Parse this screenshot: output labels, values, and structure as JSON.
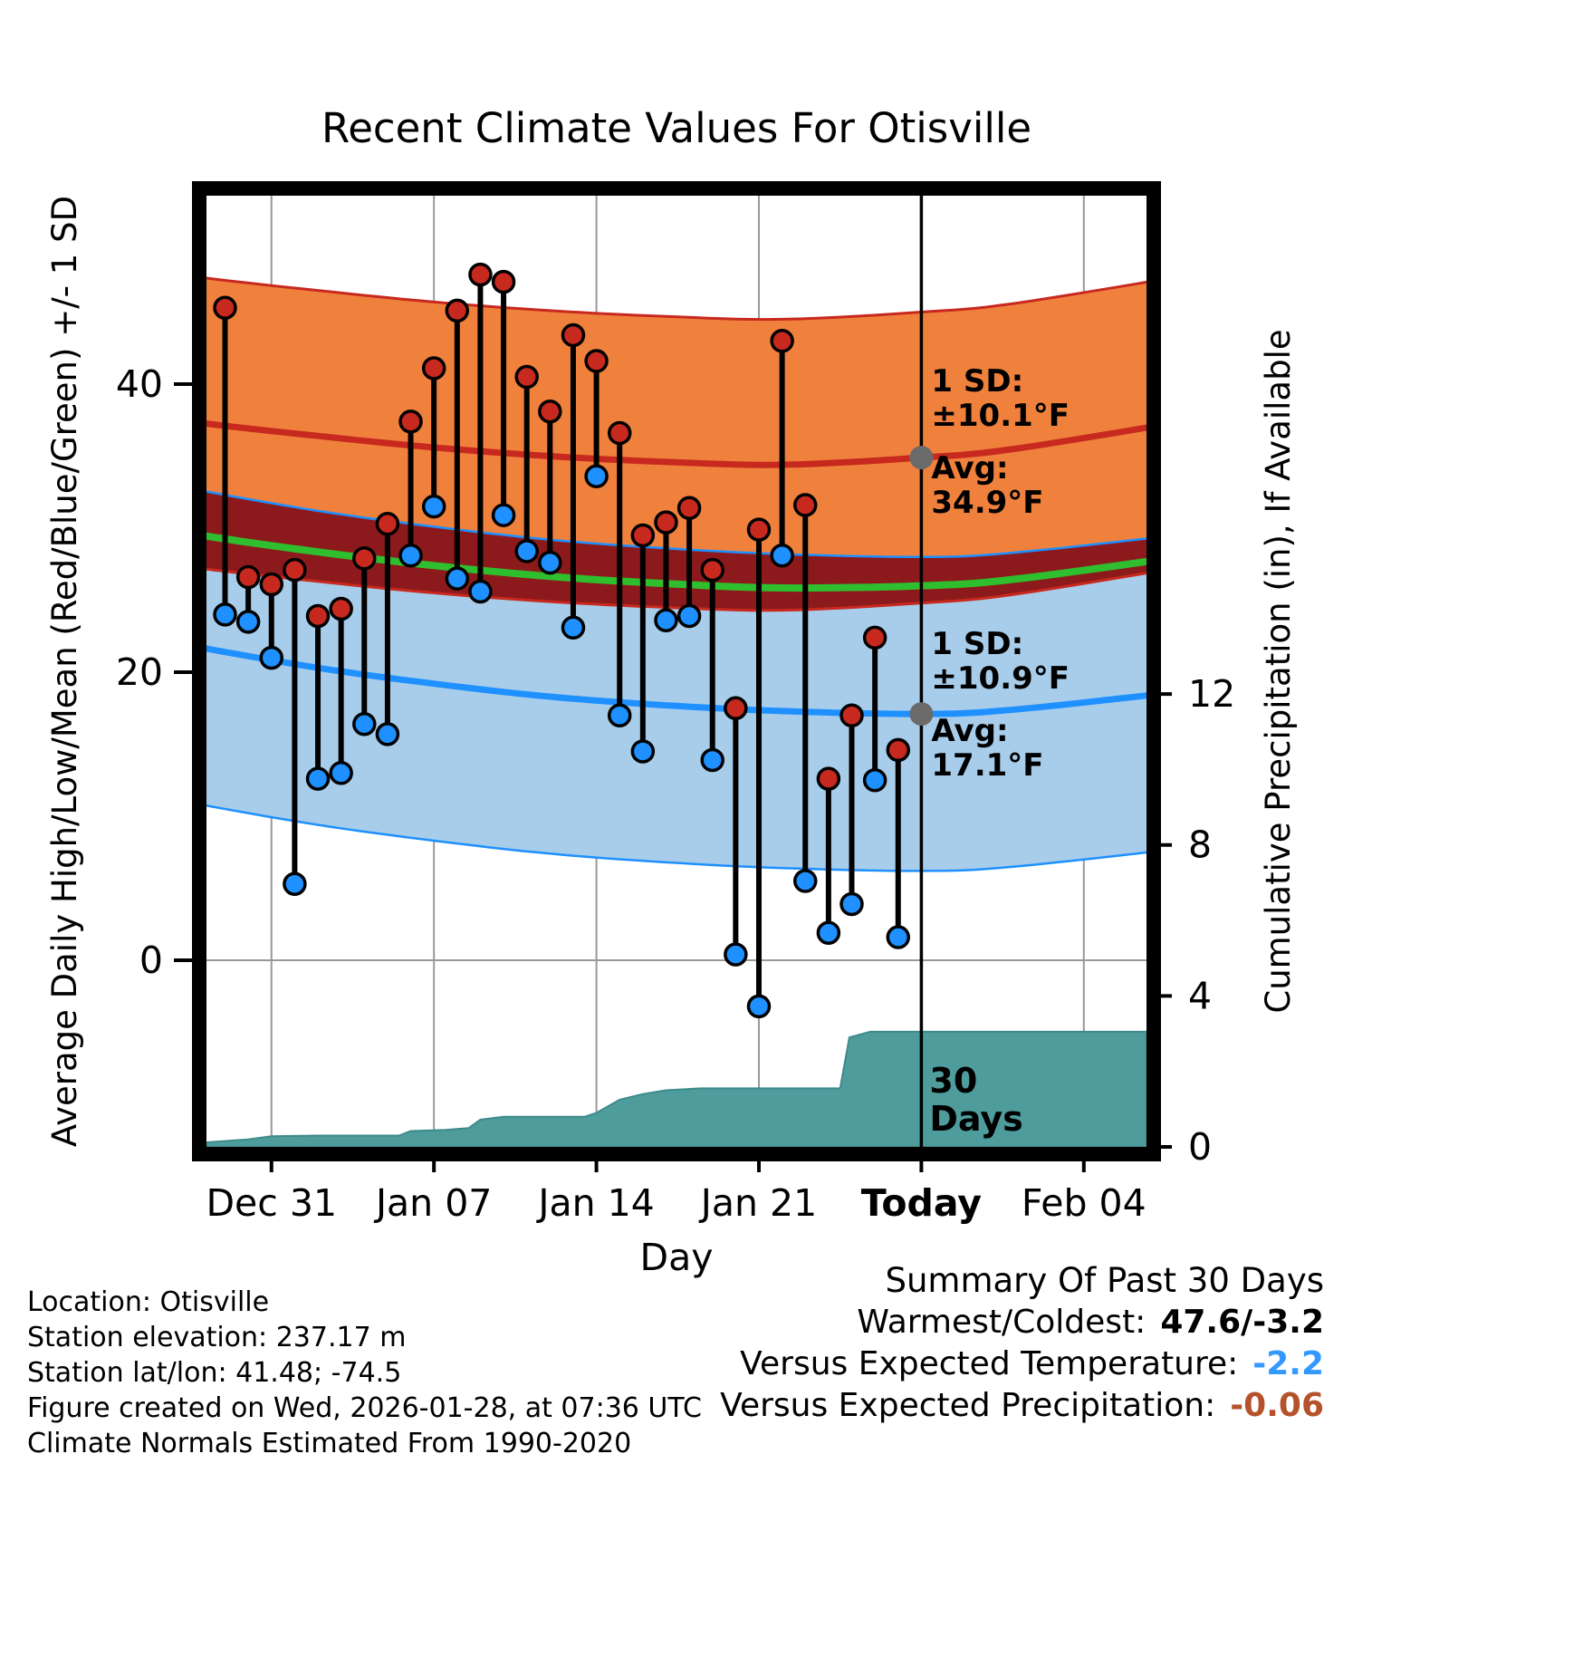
{
  "chart_data": {
    "type": "line",
    "title": "Recent Climate Values For Otisville",
    "xlabel": "Day",
    "ylabel_left": "Average Daily High/Low/Mean (Red/Blue/Green) +/- 1 SD",
    "ylabel_right": "Cumulative Precipitation (in), If Available",
    "ylim_left": [
      -13,
      53
    ],
    "ylim_right": [
      0,
      25.2
    ],
    "x_ticks": [
      {
        "label": "Dec 31",
        "day": 3
      },
      {
        "label": "Jan 07",
        "day": 10
      },
      {
        "label": "Jan 14",
        "day": 17
      },
      {
        "label": "Jan 21",
        "day": 24
      },
      {
        "label": "Today",
        "day": 31,
        "bold": true
      },
      {
        "label": "Feb 04",
        "day": 38
      }
    ],
    "y_ticks_left": [
      {
        "label": "40",
        "value": 40
      },
      {
        "label": "20",
        "value": 20
      },
      {
        "label": "0",
        "value": 0
      }
    ],
    "y_ticks_right": [
      {
        "label": "12",
        "value": 12
      },
      {
        "label": "8",
        "value": 8
      },
      {
        "label": "4",
        "value": 4
      },
      {
        "label": "0",
        "value": 0
      }
    ],
    "today_day": 31,
    "daily_series": {
      "first_day": 1,
      "highs_f": [
        45.3,
        26.6,
        26.1,
        27.1,
        23.9,
        24.4,
        27.9,
        30.3,
        37.4,
        41.1,
        45.1,
        47.6,
        47.1,
        40.5,
        38.1,
        43.4,
        41.6,
        36.6,
        29.5,
        30.4,
        31.4,
        27.1,
        17.5,
        29.9,
        43.0,
        31.6,
        12.6,
        17.0,
        22.4,
        14.6
      ],
      "lows_f": [
        24.0,
        23.5,
        21.0,
        5.3,
        12.6,
        13.0,
        16.4,
        15.7,
        28.1,
        31.5,
        26.5,
        25.6,
        30.9,
        28.4,
        27.6,
        23.1,
        33.6,
        17.0,
        14.5,
        23.6,
        23.9,
        13.9,
        0.4,
        -3.2,
        28.1,
        5.5,
        1.9,
        3.9,
        12.5,
        1.6
      ]
    },
    "climatology": {
      "sd_high_f": 10.1,
      "sd_low_f": 10.9,
      "high_avg_anchors": [
        [
          -2,
          37.9
        ],
        [
          0,
          37.3
        ],
        [
          5,
          36.4
        ],
        [
          10,
          35.6
        ],
        [
          15,
          35.0
        ],
        [
          20,
          34.6
        ],
        [
          25,
          34.4
        ],
        [
          31,
          34.9
        ],
        [
          35,
          35.5
        ],
        [
          43,
          37.6
        ]
      ],
      "low_avg_anchors": [
        [
          -2,
          22.4
        ],
        [
          0,
          21.7
        ],
        [
          5,
          20.3
        ],
        [
          10,
          19.2
        ],
        [
          15,
          18.3
        ],
        [
          20,
          17.7
        ],
        [
          25,
          17.3
        ],
        [
          31,
          17.1
        ],
        [
          35,
          17.4
        ],
        [
          43,
          18.8
        ]
      ]
    },
    "precip_cumulative_in": {
      "points": [
        [
          0.2,
          0.12
        ],
        [
          2,
          0.2
        ],
        [
          3,
          0.28
        ],
        [
          5,
          0.3
        ],
        [
          8.5,
          0.3
        ],
        [
          9,
          0.42
        ],
        [
          10.5,
          0.45
        ],
        [
          11.5,
          0.5
        ],
        [
          12,
          0.72
        ],
        [
          13,
          0.8
        ],
        [
          16.5,
          0.8
        ],
        [
          17,
          0.9
        ],
        [
          18,
          1.25
        ],
        [
          19,
          1.4
        ],
        [
          20,
          1.5
        ],
        [
          21.5,
          1.55
        ],
        [
          27.5,
          1.55
        ],
        [
          27.9,
          2.9
        ],
        [
          28.8,
          3.05
        ],
        [
          40.7,
          3.05
        ]
      ]
    },
    "annotations": {
      "high_sd": {
        "line1": "1 SD:",
        "line2": "±10.1°F"
      },
      "high_avg": {
        "line1": "Avg:",
        "line2": "34.9°F"
      },
      "high_avg_value": 34.9,
      "low_sd": {
        "line1": "1 SD:",
        "line2": "±10.9°F"
      },
      "low_avg": {
        "line1": "Avg:",
        "line2": "17.1°F"
      },
      "low_avg_value": 17.1,
      "period": {
        "line1": "30",
        "line2": "Days"
      }
    }
  },
  "footer": {
    "lines": [
      "Location: Otisville",
      "Station elevation: 237.17 m",
      "Station lat/lon: 41.48; -74.5",
      "Figure created on Wed, 2026-01-28, at 07:36 UTC",
      "Climate Normals Estimated From 1990-2020"
    ]
  },
  "summary": {
    "title": "Summary Of Past 30 Days",
    "rows": [
      {
        "label": "Warmest/Coldest:",
        "value": "47.6/-3.2",
        "color_key": "summary_black"
      },
      {
        "label": "Versus Expected Temperature:",
        "value": "-2.2",
        "color_key": "summary_blue"
      },
      {
        "label": "Versus Expected Precipitation:",
        "value": "-0.06",
        "color_key": "summary_sienna"
      }
    ]
  },
  "colors": {
    "orange_band": "#F0813D",
    "red_line": "#C8291F",
    "dark_red_band": "#8C1A1C",
    "green_line": "#2EBE2E",
    "light_blue_band": "#A8CDEA",
    "blue_line": "#1E90FF",
    "teal_fill": "#4E9C9C",
    "teal_edge": "#3E8A8C",
    "gray_annotation": "#878787",
    "marker_gray": "#6B6B6B",
    "period_label": "#333333",
    "grid": "#999999",
    "bar": "#000000",
    "frame": "#000000",
    "summary_black": "#000000",
    "summary_blue": "#3399FF",
    "summary_sienna": "#B5522B"
  }
}
